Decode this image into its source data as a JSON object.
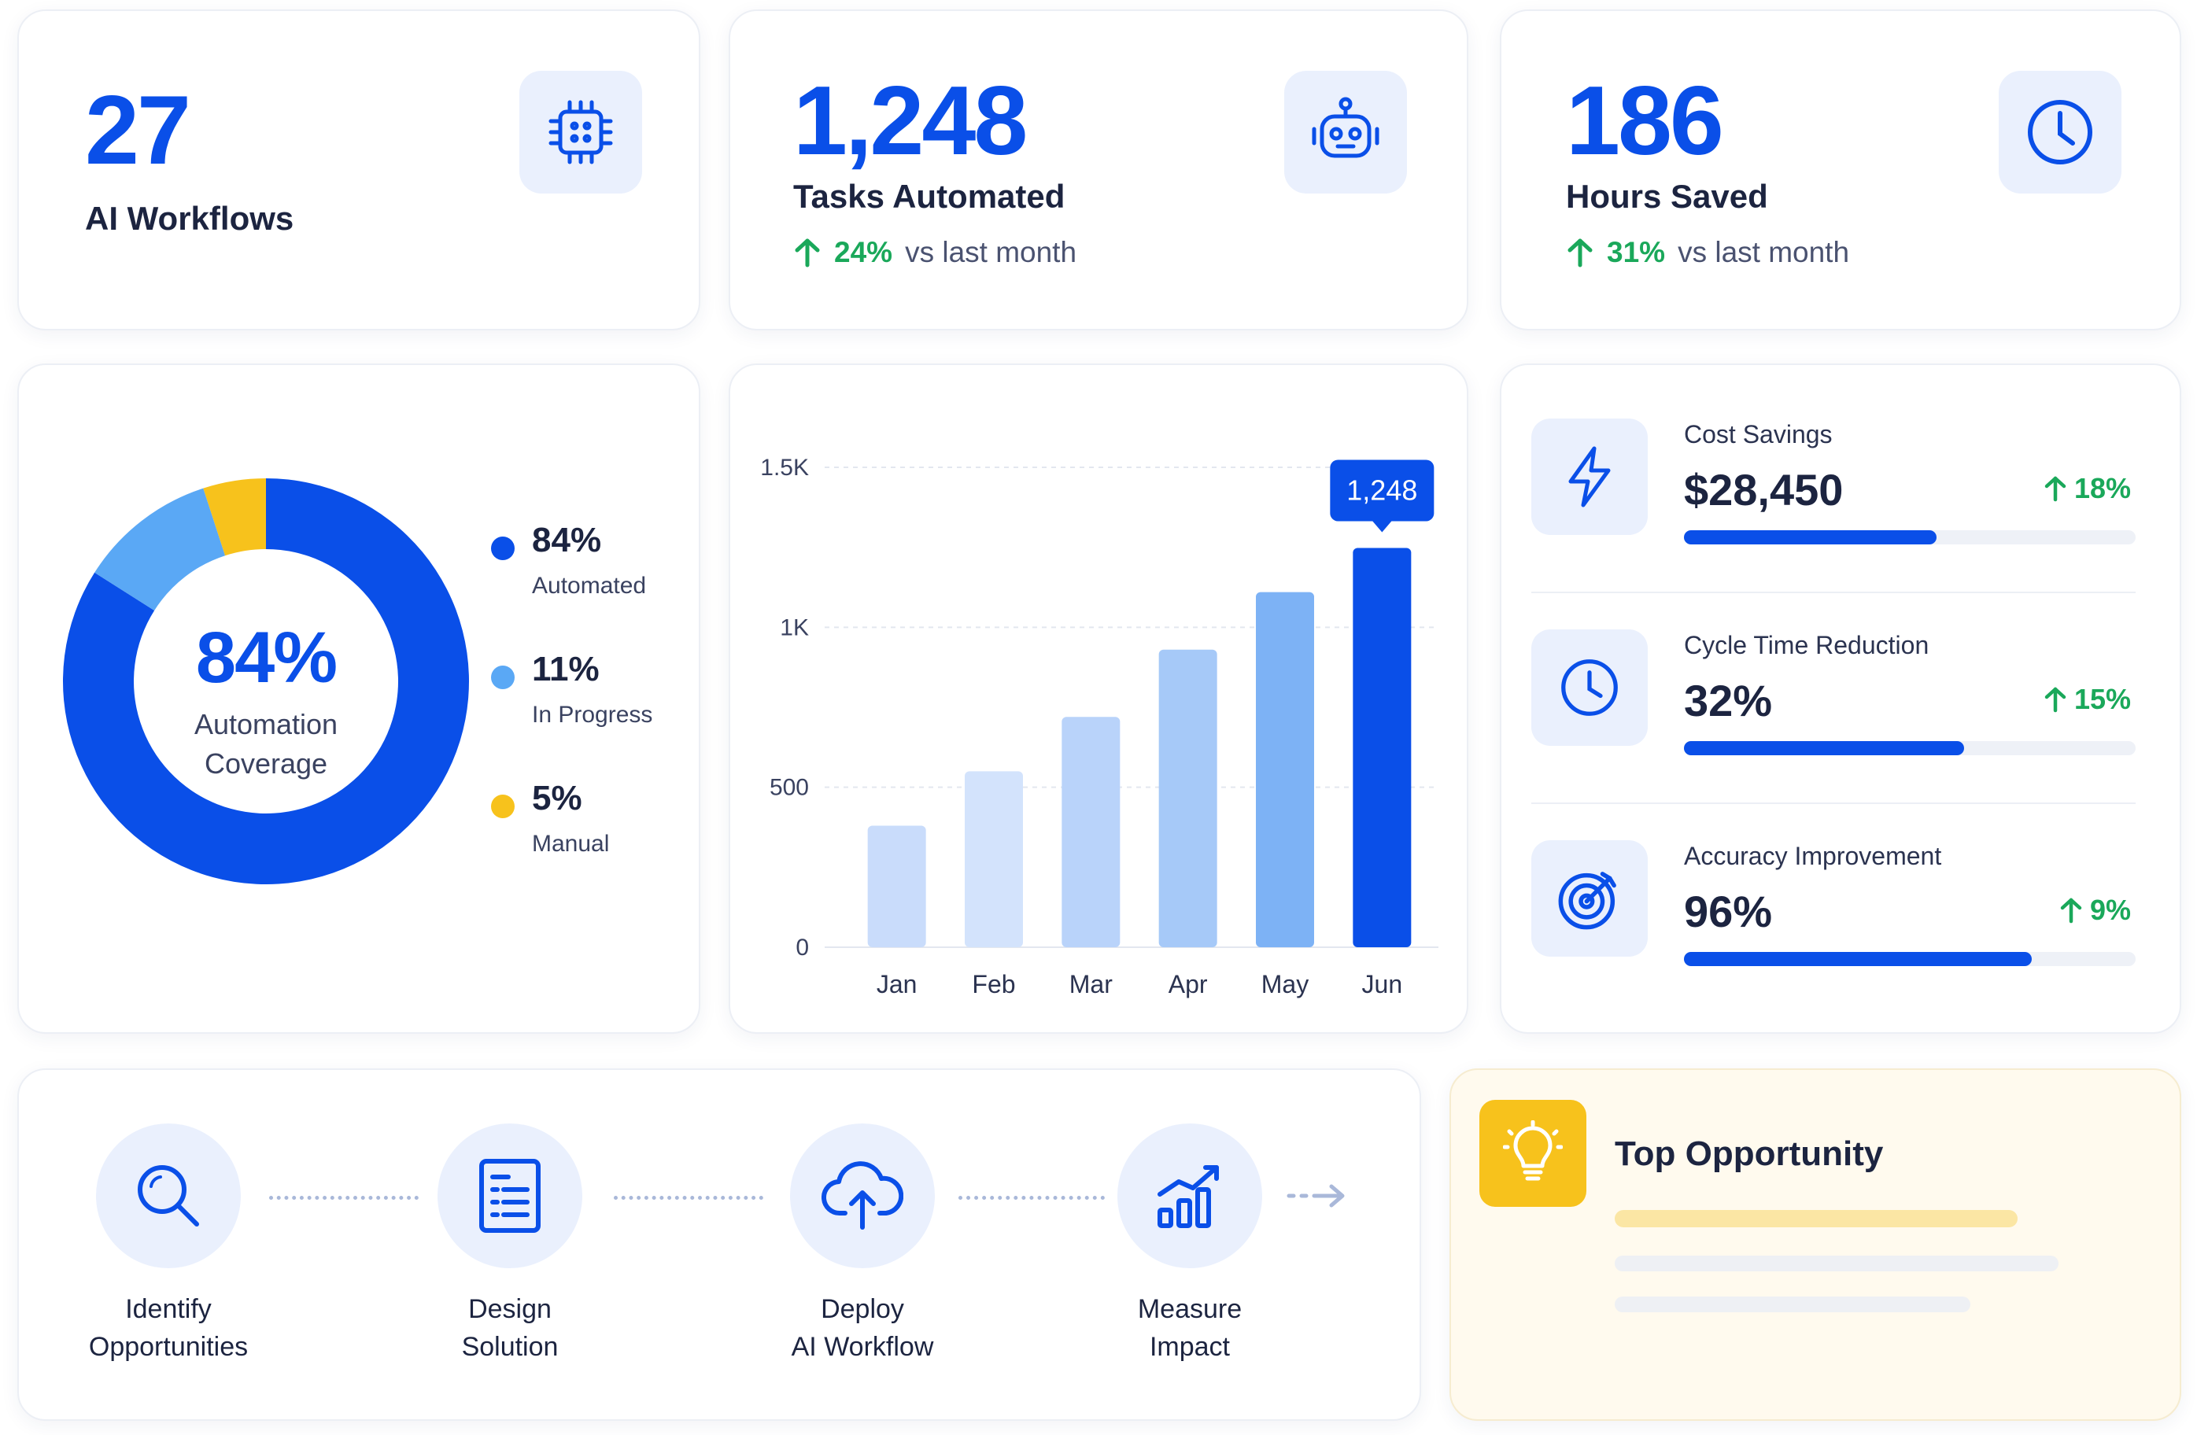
{
  "stats": [
    {
      "value": "27",
      "label": "AI Workflows",
      "icon": "chip-icon"
    },
    {
      "value": "1,248",
      "label": "Tasks Automated",
      "trend_pct": "24%",
      "trend_text": "vs last month",
      "icon": "robot-icon"
    },
    {
      "value": "186",
      "label": "Hours Saved",
      "trend_pct": "31%",
      "trend_text": "vs last month",
      "icon": "clock-icon"
    }
  ],
  "coverage": {
    "center_value": "84%",
    "center_label_line1": "Automation",
    "center_label_line2": "Coverage",
    "legend": [
      {
        "pct": "84%",
        "label": "Automated",
        "value": 84,
        "color": "#0a4fe8"
      },
      {
        "pct": "11%",
        "label": "In Progress",
        "value": 11,
        "color": "#5aa8f5"
      },
      {
        "pct": "5%",
        "label": "Manual",
        "value": 5,
        "color": "#f7c21c"
      }
    ]
  },
  "chart_data": {
    "type": "bar",
    "categories": [
      "Jan",
      "Feb",
      "Mar",
      "Apr",
      "May",
      "Jun"
    ],
    "values": [
      380,
      550,
      720,
      930,
      1110,
      1248
    ],
    "ylim": [
      0,
      1500
    ],
    "yticks": [
      0,
      500,
      1000,
      1500
    ],
    "ytick_labels": [
      "0",
      "500",
      "1K",
      "1.5K"
    ],
    "highlight_label": "1,248",
    "highlight_index": 5,
    "grid": true,
    "bar_colors": [
      "#c9dcfb",
      "#d3e3fc",
      "#b9d3fa",
      "#a6c9f8",
      "#7db2f5",
      "#0a4fe8"
    ],
    "title": "",
    "xlabel": "",
    "ylabel": ""
  },
  "metrics": [
    {
      "label": "Cost Savings",
      "value": "$28,450",
      "change": "18%",
      "progress": 0.56,
      "icon": "lightning-icon"
    },
    {
      "label": "Cycle Time Reduction",
      "value": "32%",
      "change": "15%",
      "progress": 0.62,
      "icon": "clock-icon"
    },
    {
      "label": "Accuracy Improvement",
      "value": "96%",
      "change": "9%",
      "progress": 0.77,
      "icon": "target-icon"
    }
  ],
  "process": [
    {
      "line1": "Identify",
      "line2": "Opportunities",
      "icon": "search-icon"
    },
    {
      "line1": "Design",
      "line2": "Solution",
      "icon": "document-icon"
    },
    {
      "line1": "Deploy",
      "line2": "AI Workflow",
      "icon": "cloud-upload-icon"
    },
    {
      "line1": "Measure",
      "line2": "Impact",
      "icon": "growth-chart-icon"
    }
  ],
  "opportunity": {
    "title": "Top Opportunity",
    "icon": "lightbulb-icon"
  },
  "colors": {
    "accent": "#0a4fe8",
    "positive": "#1aa85a",
    "light_blue": "#5aa8f5",
    "yellow": "#f7c21c"
  }
}
